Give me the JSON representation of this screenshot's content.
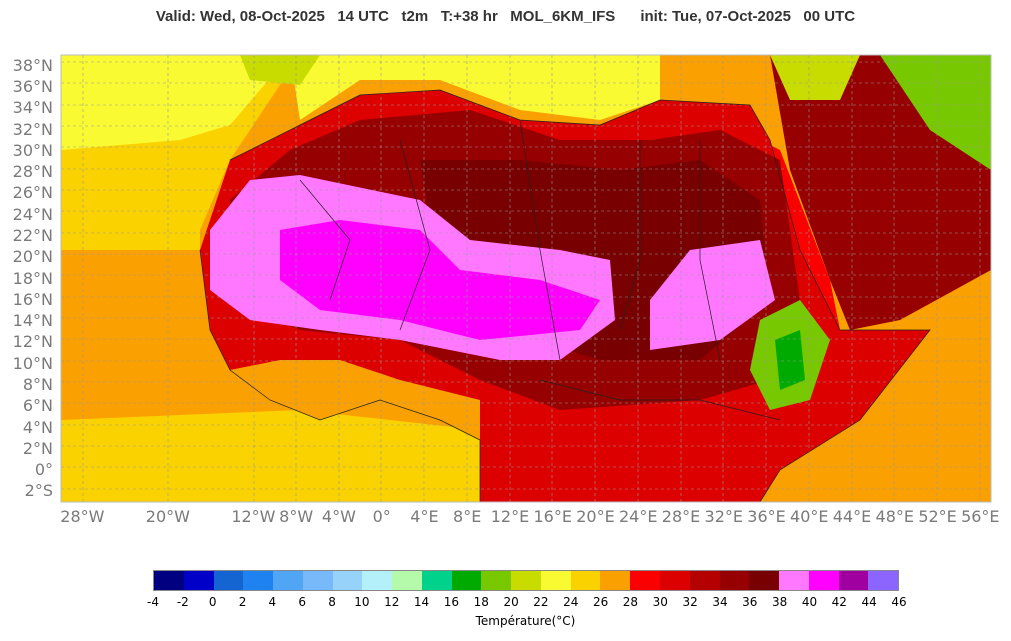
{
  "header": {
    "title": "Valid: Wed, 08-Oct-2025   14 UTC   t2m   T:+38 hr   MOL_6KM_IFS      init: Tue, 07-Oct-2025   00 UTC"
  },
  "map": {
    "latitude_labels": [
      "38°N",
      "36°N",
      "34°N",
      "32°N",
      "30°N",
      "28°N",
      "26°N",
      "24°N",
      "22°N",
      "20°N",
      "18°N",
      "16°N",
      "14°N",
      "12°N",
      "10°N",
      "8°N",
      "6°N",
      "4°N",
      "2°N",
      "0°",
      "2°S"
    ],
    "longitude_labels": [
      "28°W",
      "20°W",
      "12°W",
      "8°W",
      "4°W",
      "0°",
      "4°E",
      "8°E",
      "12°E",
      "16°E",
      "20°E",
      "24°E",
      "28°E",
      "32°E",
      "36°E",
      "40°E",
      "44°E",
      "48°E",
      "52°E",
      "56°E"
    ],
    "longitude_values": [
      -28,
      -20,
      -12,
      -8,
      -4,
      0,
      4,
      8,
      12,
      16,
      20,
      24,
      28,
      32,
      36,
      40,
      44,
      48,
      52,
      56
    ],
    "latitude_values": [
      38,
      36,
      34,
      32,
      30,
      28,
      26,
      24,
      22,
      20,
      18,
      16,
      14,
      12,
      10,
      8,
      6,
      4,
      2,
      0,
      -2
    ],
    "lon_range": [
      -30,
      57
    ],
    "lat_range": [
      -3,
      39
    ]
  },
  "colorbar": {
    "title": "Température(°C)",
    "ticks": [
      "-4",
      "-2",
      "0",
      "2",
      "4",
      "6",
      "8",
      "10",
      "12",
      "14",
      "16",
      "18",
      "20",
      "22",
      "24",
      "26",
      "28",
      "30",
      "32",
      "34",
      "36",
      "38",
      "40",
      "42",
      "44",
      "46"
    ],
    "colors": [
      "#000080",
      "#0000c8",
      "#1464d2",
      "#1e82f0",
      "#50a5f5",
      "#78b9fa",
      "#96d2fa",
      "#b4f0fa",
      "#b4faaa",
      "#00d28c",
      "#00aa00",
      "#78c800",
      "#c8dc00",
      "#fafa32",
      "#fad200",
      "#faa000",
      "#fa0000",
      "#dc0000",
      "#b40000",
      "#960000",
      "#780000",
      "#ff78ff",
      "#ff00ff",
      "#a000a0",
      "#8c64ff"
    ]
  },
  "colors": {
    "ocean_warm": "#faa000",
    "ocean_mild": "#fad200",
    "ocean_cool": "#fafa32",
    "land_hot": "#dc0000",
    "land_very_hot": "#960000",
    "land_extreme": "#780000",
    "land_peak": "#ff78ff",
    "land_max": "#ff00ff"
  }
}
